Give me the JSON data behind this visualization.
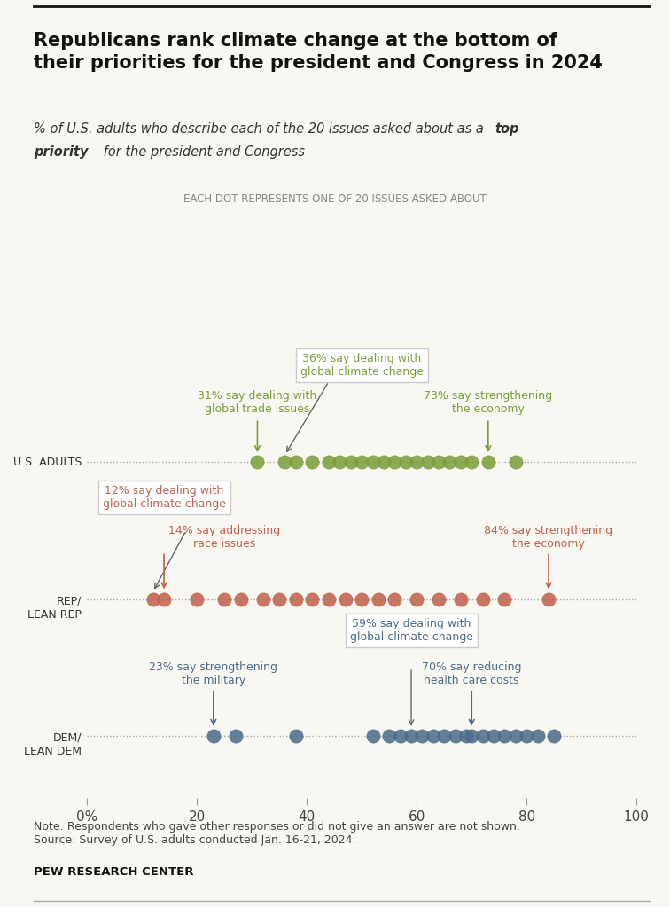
{
  "title": "Republicans rank climate change at the bottom of\ntheir priorities for the president and Congress in 2024",
  "subtitle_plain": "% of U.S. adults who describe each of the 20 issues asked about as a ",
  "subtitle_bold": "top\npriority",
  "subtitle_rest": " for the president and Congress",
  "dot_label": "EACH DOT REPRESENTS ONE OF 20 ISSUES ASKED ABOUT",
  "background_color": "#f9f7f2",
  "plot_bg": "#f9f7f2",
  "us_adults_dots": [
    31,
    36,
    38,
    41,
    44,
    46,
    48,
    50,
    52,
    54,
    56,
    58,
    60,
    62,
    64,
    66,
    68,
    70,
    73,
    78
  ],
  "us_adults_color": "#7a9e3a",
  "us_adults_highlight_low": 31,
  "us_adults_highlight_climate": 36,
  "us_adults_highlight_high": 73,
  "rep_dots": [
    12,
    14,
    20,
    25,
    28,
    32,
    35,
    38,
    41,
    44,
    47,
    50,
    53,
    56,
    60,
    64,
    68,
    72,
    76,
    84
  ],
  "rep_color": "#c0604a",
  "rep_highlight_climate": 12,
  "rep_highlight_low2": 14,
  "rep_highlight_high": 84,
  "dem_dots": [
    23,
    27,
    38,
    52,
    55,
    57,
    59,
    61,
    63,
    65,
    67,
    69,
    70,
    72,
    74,
    76,
    78,
    80,
    82,
    85
  ],
  "dem_color": "#4a6b8a",
  "dem_highlight_low": 23,
  "dem_highlight_climate": 59,
  "dem_highlight_high": 70,
  "note": "Note: Respondents who gave other responses or did not give an answer are not shown.\nSource: Survey of U.S. adults conducted Jan. 16-21, 2024.",
  "source_bold": "PEW RESEARCH CENTER",
  "xlim": [
    0,
    100
  ],
  "xticks": [
    0,
    20,
    40,
    60,
    80,
    100
  ],
  "xticklabels": [
    "0%",
    "20",
    "40",
    "60",
    "80",
    "100"
  ]
}
